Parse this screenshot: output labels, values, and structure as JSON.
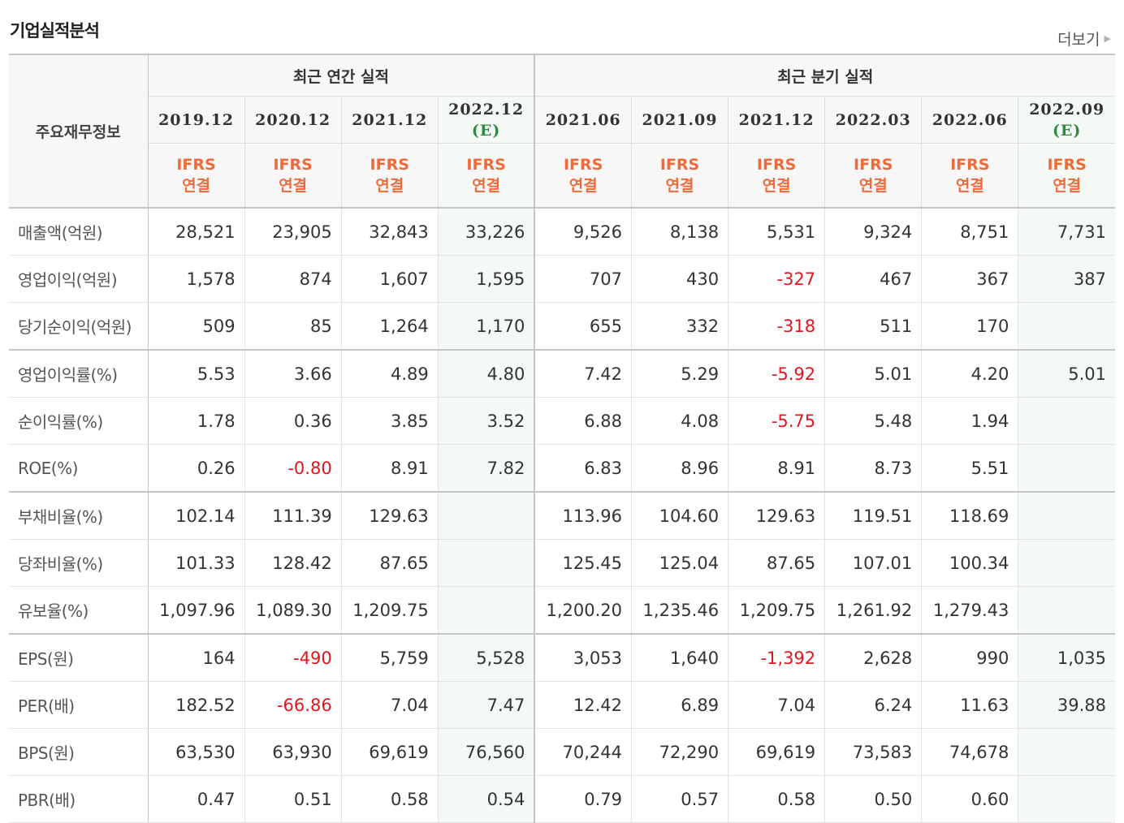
{
  "title": "기업실적분석",
  "more_label": "더보기",
  "table": {
    "corner_label": "주요재무정보",
    "group_annual": "최근 연간 실적",
    "group_quarter": "최근 분기 실적",
    "periods": [
      "2019.12",
      "2020.12",
      "2021.12",
      "2022.12",
      "2021.06",
      "2021.09",
      "2021.12",
      "2022.03",
      "2022.06",
      "2022.09"
    ],
    "estimate_mark": "(E)",
    "ifrs_line1": "IFRS",
    "ifrs_line2": "연결",
    "rows": [
      {
        "label": "매출액(억원)",
        "values": [
          "28,521",
          "23,905",
          "32,843",
          "33,226",
          "9,526",
          "8,138",
          "5,531",
          "9,324",
          "8,751",
          "7,731"
        ]
      },
      {
        "label": "영업이익(억원)",
        "values": [
          "1,578",
          "874",
          "1,607",
          "1,595",
          "707",
          "430",
          "-327",
          "467",
          "367",
          "387"
        ]
      },
      {
        "label": "당기순이익(억원)",
        "values": [
          "509",
          "85",
          "1,264",
          "1,170",
          "655",
          "332",
          "-318",
          "511",
          "170",
          ""
        ]
      },
      {
        "label": "영업이익률(%)",
        "values": [
          "5.53",
          "3.66",
          "4.89",
          "4.80",
          "7.42",
          "5.29",
          "-5.92",
          "5.01",
          "4.20",
          "5.01"
        ]
      },
      {
        "label": "순이익률(%)",
        "values": [
          "1.78",
          "0.36",
          "3.85",
          "3.52",
          "6.88",
          "4.08",
          "-5.75",
          "5.48",
          "1.94",
          ""
        ]
      },
      {
        "label": "ROE(%)",
        "values": [
          "0.26",
          "-0.80",
          "8.91",
          "7.82",
          "6.83",
          "8.96",
          "8.91",
          "8.73",
          "5.51",
          ""
        ]
      },
      {
        "label": "부채비율(%)",
        "values": [
          "102.14",
          "111.39",
          "129.63",
          "",
          "113.96",
          "104.60",
          "129.63",
          "119.51",
          "118.69",
          ""
        ]
      },
      {
        "label": "당좌비율(%)",
        "values": [
          "101.33",
          "128.42",
          "87.65",
          "",
          "125.45",
          "125.04",
          "87.65",
          "107.01",
          "100.34",
          ""
        ]
      },
      {
        "label": "유보율(%)",
        "values": [
          "1,097.96",
          "1,089.30",
          "1,209.75",
          "",
          "1,200.20",
          "1,235.46",
          "1,209.75",
          "1,261.92",
          "1,279.43",
          ""
        ]
      },
      {
        "label": "EPS(원)",
        "values": [
          "164",
          "-490",
          "5,759",
          "5,528",
          "3,053",
          "1,640",
          "-1,392",
          "2,628",
          "990",
          "1,035"
        ]
      },
      {
        "label": "PER(배)",
        "values": [
          "182.52",
          "-66.86",
          "7.04",
          "7.47",
          "12.42",
          "6.89",
          "7.04",
          "6.24",
          "11.63",
          "39.88"
        ]
      },
      {
        "label": "BPS(원)",
        "values": [
          "63,530",
          "63,930",
          "69,619",
          "76,560",
          "70,244",
          "72,290",
          "69,619",
          "73,583",
          "74,678",
          ""
        ]
      },
      {
        "label": "PBR(배)",
        "values": [
          "0.47",
          "0.51",
          "0.58",
          "0.54",
          "0.79",
          "0.57",
          "0.58",
          "0.50",
          "0.60",
          ""
        ]
      }
    ]
  },
  "colors": {
    "negative": "#e0161f",
    "ifrs": "#ee6a3a",
    "estimate_mark": "#2e8b3e",
    "estimate_bg": "#f4f9f5"
  }
}
